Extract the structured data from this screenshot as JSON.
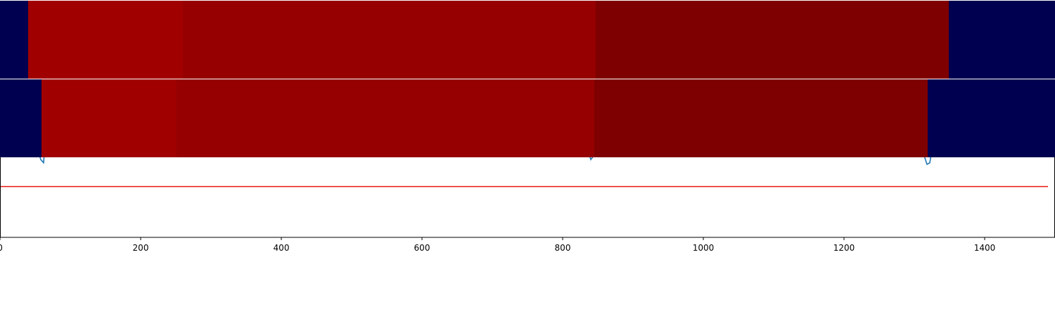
{
  "chart_data": {
    "type": "heatmap",
    "title": "",
    "xlabel": "",
    "ylabel": "",
    "xlim": [
      0,
      1490
    ],
    "x_ticks": [
      {
        "value": 0,
        "label": "0"
      },
      {
        "value": 200,
        "label": "200"
      },
      {
        "value": 400,
        "label": "400"
      },
      {
        "value": 600,
        "label": "600"
      },
      {
        "value": 800,
        "label": "800"
      },
      {
        "value": 1000,
        "label": "1000"
      },
      {
        "value": 1200,
        "label": "1200"
      },
      {
        "value": 1400,
        "label": "1400"
      }
    ],
    "grid": false,
    "legend": "none",
    "segment_rows": [
      {
        "segments": [
          {
            "start": 0,
            "end": 40,
            "color": "#000050"
          },
          {
            "start": 40,
            "end": 260,
            "color": "#a00000"
          },
          {
            "start": 260,
            "end": 847,
            "color": "#960000"
          },
          {
            "start": 847,
            "end": 1349,
            "color": "#7e0000"
          },
          {
            "start": 1349,
            "end": 1490,
            "color": "#000050"
          }
        ]
      },
      {
        "segments": [
          {
            "start": 0,
            "end": 59,
            "color": "#000050"
          },
          {
            "start": 59,
            "end": 251,
            "color": "#a00000"
          },
          {
            "start": 251,
            "end": 845,
            "color": "#960000"
          },
          {
            "start": 845,
            "end": 1319,
            "color": "#7e0000"
          },
          {
            "start": 1319,
            "end": 1490,
            "color": "#000050"
          }
        ]
      }
    ],
    "line_series": {
      "color": "#1f77b4",
      "ylim": [
        0,
        1
      ],
      "x": [
        0,
        30,
        40,
        45,
        48,
        52,
        55,
        58,
        62,
        68,
        80,
        120,
        160,
        200,
        207,
        212,
        230,
        236,
        240,
        245,
        249,
        252,
        255,
        258,
        262,
        270,
        300,
        360,
        380,
        440,
        480,
        500,
        530,
        560,
        600,
        640,
        680,
        700,
        720,
        740,
        760,
        770,
        780,
        785,
        790,
        795,
        800,
        810,
        815,
        820,
        825,
        830,
        835,
        840,
        845,
        850,
        855,
        860,
        866,
        875,
        890,
        900,
        910,
        920,
        930,
        950,
        960,
        970,
        978,
        985,
        995,
        1005,
        1015,
        1030,
        1050,
        1070,
        1080,
        1090,
        1100,
        1110,
        1130,
        1160,
        1200,
        1230,
        1250,
        1260,
        1270,
        1275,
        1280,
        1290,
        1300,
        1305,
        1310,
        1315,
        1318,
        1322,
        1326,
        1330,
        1334,
        1338,
        1345,
        1360,
        1380,
        1400,
        1420,
        1440,
        1460,
        1470,
        1490
      ],
      "y": [
        1.0,
        1.0,
        0.99,
        0.78,
        0.57,
        0.51,
        0.53,
        0.49,
        0.47,
        0.86,
        0.95,
        0.96,
        0.97,
        0.98,
        0.95,
        0.98,
        0.95,
        0.92,
        0.75,
        0.61,
        0.54,
        0.56,
        0.78,
        0.9,
        0.94,
        0.96,
        0.96,
        0.97,
        0.96,
        0.94,
        0.93,
        0.92,
        0.92,
        0.94,
        0.95,
        0.94,
        0.95,
        0.93,
        0.93,
        0.96,
        0.93,
        0.88,
        0.82,
        0.77,
        0.74,
        0.75,
        0.72,
        0.7,
        0.66,
        0.69,
        0.61,
        0.63,
        0.56,
        0.49,
        0.52,
        0.58,
        0.7,
        0.83,
        0.88,
        0.87,
        0.86,
        0.85,
        0.86,
        0.88,
        0.9,
        0.85,
        0.76,
        0.66,
        0.6,
        0.58,
        0.67,
        0.82,
        0.85,
        0.88,
        0.89,
        0.87,
        0.85,
        0.84,
        0.86,
        0.9,
        0.93,
        0.95,
        0.95,
        0.95,
        0.92,
        0.87,
        0.8,
        0.76,
        0.72,
        0.7,
        0.69,
        0.68,
        0.65,
        0.5,
        0.46,
        0.47,
        0.58,
        0.85,
        0.98,
        0.99,
        0.97,
        0.96,
        0.95,
        0.94,
        0.95,
        0.94,
        0.94,
        0.95,
        0.97
      ]
    },
    "threshold_line": {
      "y": 0.32,
      "color": "#e8160c"
    }
  }
}
